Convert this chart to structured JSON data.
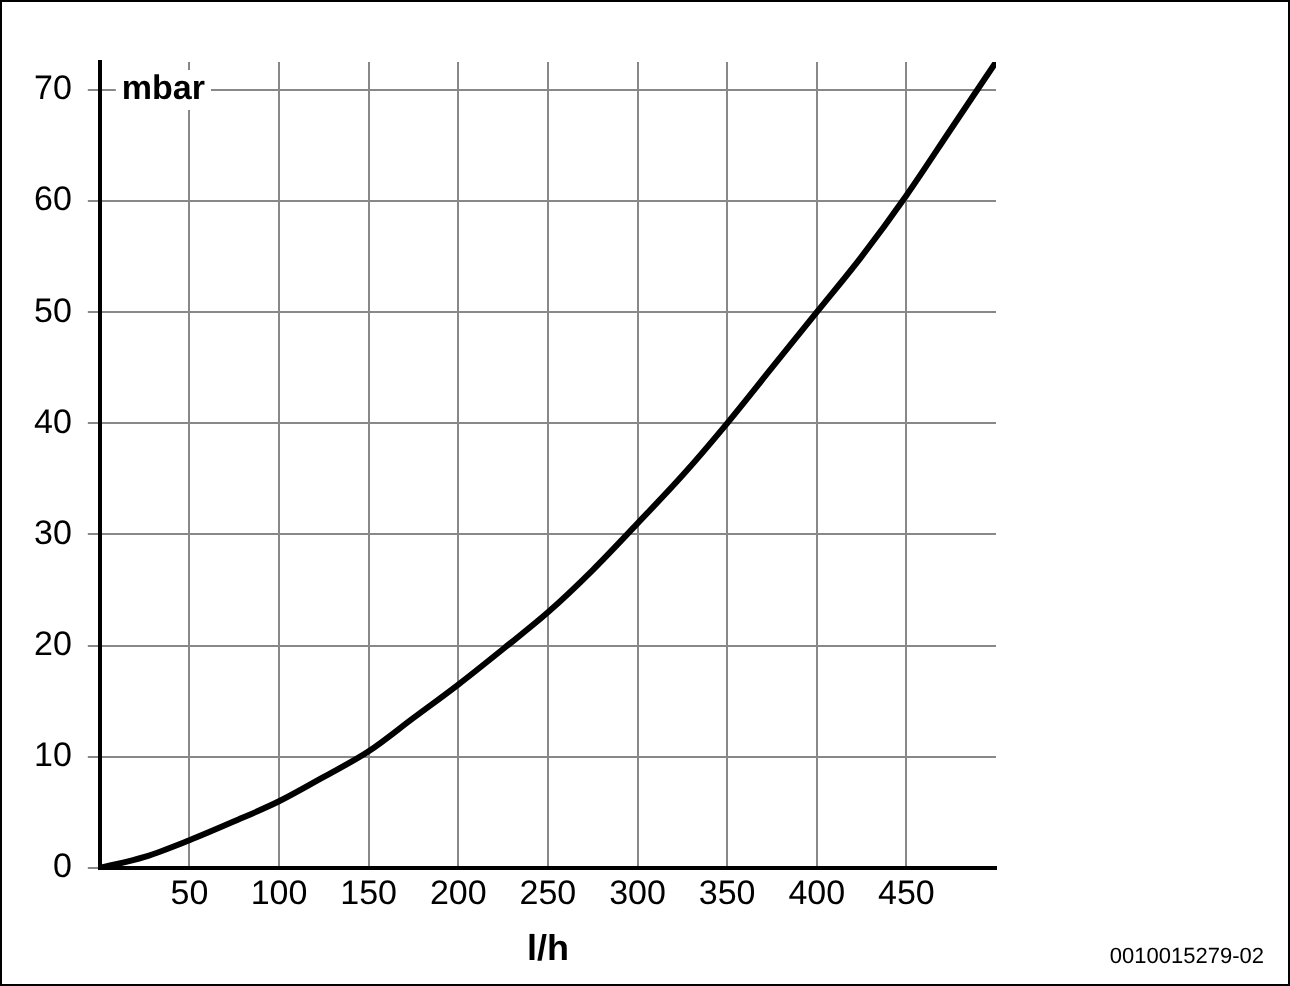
{
  "chart_data": {
    "type": "line",
    "xlabel": "l/h",
    "ylabel": "mbar",
    "annotations": [
      "0010015279-02"
    ],
    "x": [
      0,
      25,
      50,
      75,
      100,
      125,
      150,
      175,
      200,
      225,
      250,
      275,
      300,
      325,
      350,
      375,
      400,
      425,
      450,
      475,
      500
    ],
    "series": [
      {
        "color": "#000000",
        "values": [
          0,
          1,
          2.5,
          4.2,
          6,
          8.2,
          10.5,
          13.5,
          16.5,
          19.7,
          23,
          26.8,
          31,
          35.3,
          40,
          45,
          50,
          55,
          60.5,
          66.5,
          72.5
        ]
      }
    ],
    "xlim": [
      0,
      500
    ],
    "ylim": [
      0,
      72.5
    ],
    "xticks": [
      50,
      100,
      150,
      200,
      250,
      300,
      350,
      400,
      450
    ],
    "yticks": [
      0,
      10,
      20,
      30,
      40,
      50,
      60,
      70
    ],
    "grid": true,
    "legend": false,
    "marker": "none",
    "line_style": "solid"
  }
}
